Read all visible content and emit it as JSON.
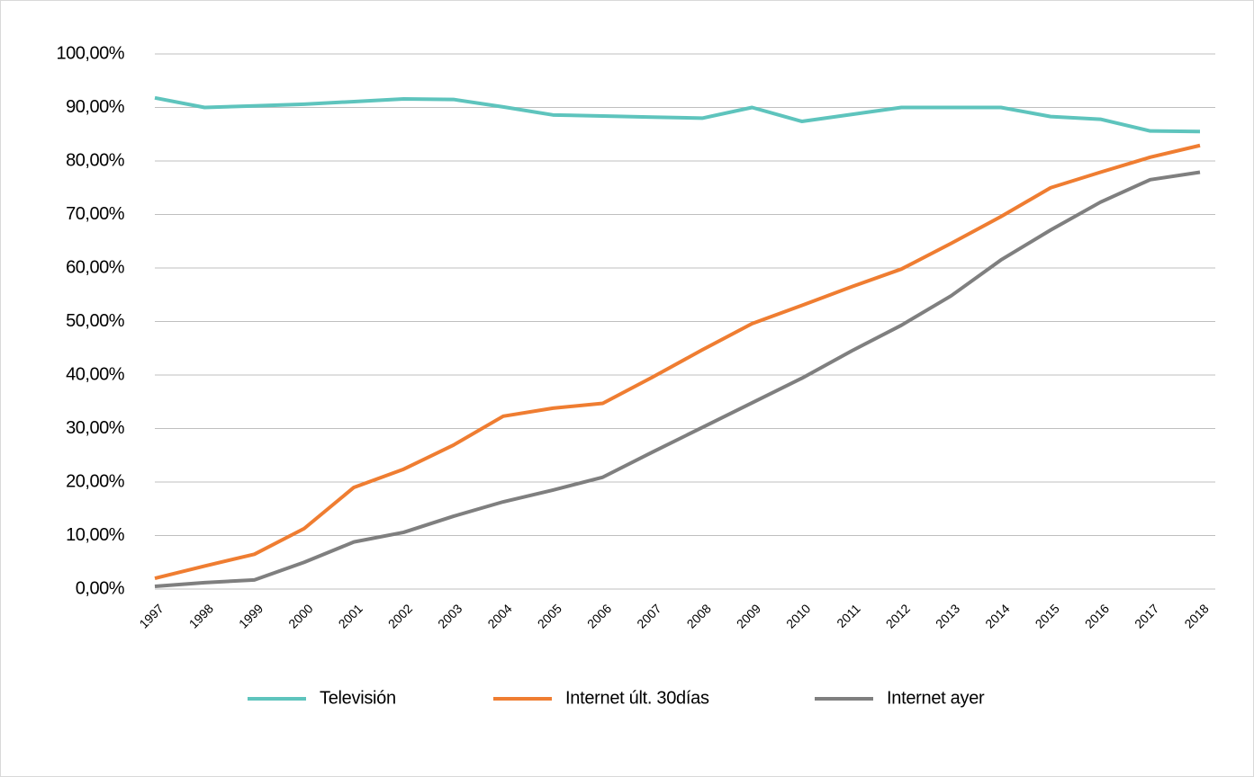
{
  "chart_data": {
    "type": "line",
    "categories": [
      "1997",
      "1998",
      "1999",
      "2000",
      "2001",
      "2002",
      "2003",
      "2004",
      "2005",
      "2006",
      "2007",
      "2008",
      "2009",
      "2010",
      "2011",
      "2012",
      "2013",
      "2014",
      "2015",
      "2016",
      "2017",
      "2018"
    ],
    "series": [
      {
        "name": "Televisión",
        "color": "#5ec4bd",
        "values": [
          91.8,
          90.0,
          90.3,
          90.6,
          91.1,
          91.6,
          91.5,
          90.1,
          88.6,
          88.4,
          88.2,
          88.0,
          90.0,
          87.4,
          88.7,
          90.0,
          90.0,
          90.0,
          88.3,
          87.8,
          85.6,
          85.5
        ]
      },
      {
        "name": "Internet últ. 30días",
        "color": "#ef7d31",
        "values": [
          2.0,
          4.3,
          6.5,
          11.3,
          19.0,
          22.4,
          26.9,
          32.3,
          33.8,
          34.7,
          39.6,
          44.7,
          49.6,
          53.0,
          56.5,
          59.8,
          64.6,
          69.6,
          75.0,
          77.9,
          80.7,
          82.9
        ]
      },
      {
        "name": "Internet ayer",
        "color": "#7f7f7f",
        "values": [
          0.5,
          1.2,
          1.7,
          5.0,
          8.8,
          10.6,
          13.6,
          16.3,
          18.5,
          20.9,
          25.6,
          30.2,
          34.8,
          39.4,
          44.5,
          49.3,
          54.8,
          61.5,
          67.1,
          72.3,
          76.5,
          77.9
        ]
      }
    ],
    "ylim": [
      0,
      100
    ],
    "yticks": [
      {
        "value": 0,
        "label": "0,00%"
      },
      {
        "value": 10,
        "label": "10,00%"
      },
      {
        "value": 20,
        "label": "20,00%"
      },
      {
        "value": 30,
        "label": "30,00%"
      },
      {
        "value": 40,
        "label": "40,00%"
      },
      {
        "value": 50,
        "label": "50,00%"
      },
      {
        "value": 60,
        "label": "60,00%"
      },
      {
        "value": 70,
        "label": "70,00%"
      },
      {
        "value": 80,
        "label": "80,00%"
      },
      {
        "value": 90,
        "label": "90,00%"
      },
      {
        "value": 100,
        "label": "100,00%"
      }
    ],
    "grid": true,
    "legend": "bottom"
  }
}
